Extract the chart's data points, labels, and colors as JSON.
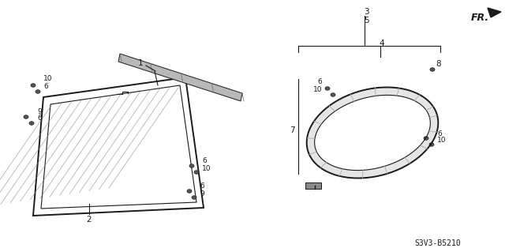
{
  "bg_color": "#ffffff",
  "diagram_code": "S3V3-B5210",
  "color_main": "#1a1a1a",
  "color_gray": "#888888",
  "color_hatch": "#999999",
  "color_strip": "#aaaaaa"
}
